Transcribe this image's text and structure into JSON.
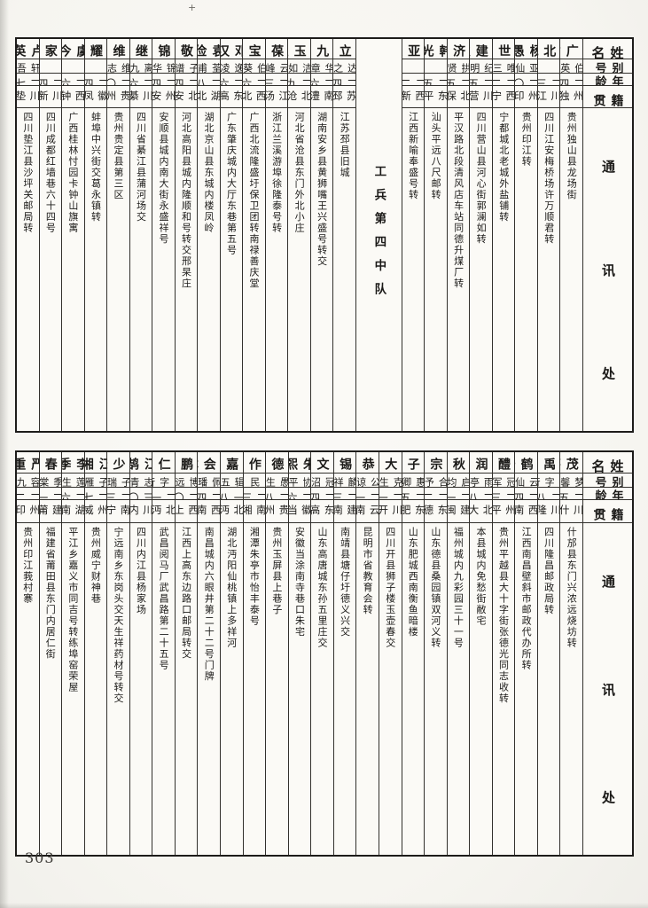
{
  "page_number": "303",
  "headers": [
    "姓名",
    "别号",
    "年龄",
    "籍贯",
    "通讯处"
  ],
  "tables": [
    {
      "columns": [
        {
          "type": "header"
        },
        {
          "type": "person",
          "name": "熊广才",
          "alias": "伯英",
          "age": "二四",
          "native": "贵州独山",
          "address": "贵州独山县龙场街"
        },
        {
          "type": "person",
          "name": "李北嵐",
          "alias": "",
          "age": "二三",
          "native": "四川江安",
          "address": "四川江安梅桥场许万顺君转"
        },
        {
          "type": "person",
          "name": "杨愚",
          "alias": "亚仙",
          "age": "二〇",
          "native": "贵州印江",
          "address": "贵州印江转"
        },
        {
          "type": "person",
          "name": "曾世平",
          "alias": "唯三",
          "age": "二二",
          "native": "江西宁都",
          "address": "宁都城北老城外盐铺转"
        },
        {
          "type": "person",
          "name": "郭建秋",
          "alias": "纪明",
          "age": "二五",
          "native": "四川营山",
          "address": "四川营山县河心街郭澜如转"
        },
        {
          "type": "person",
          "name": "窦济华",
          "alias": "拱贤",
          "age": "二五",
          "native": "河北保定",
          "address": "平汉路北段清风店车站同德升煤厂转"
        },
        {
          "type": "person",
          "name": "韩光",
          "alias": "",
          "age": "二五",
          "native": "广东平远",
          "address": "汕头平远八尺邮转"
        },
        {
          "type": "person",
          "name": "傅亚夫",
          "alias": "",
          "age": "二二",
          "native": "江西新喻",
          "address": "江西新喻奉盛号转"
        },
        {
          "type": "divider",
          "label": "工兵第四中队"
        },
        {
          "type": "person",
          "name": "杲立民",
          "alias": "达之",
          "age": "二四",
          "native": "江苏邳县",
          "address": "江苏邳县旧城"
        },
        {
          "type": "person",
          "name": "萧九成",
          "alias": "华章",
          "age": "二六",
          "native": "湖南澧县",
          "address": "湖南安乡县黄狮嘴王兴盛号转交"
        },
        {
          "type": "person",
          "name": "李玉生",
          "alias": "洁如",
          "age": "二九",
          "native": "河北沧县",
          "address": "河北省沧县东门外北小庄"
        },
        {
          "type": "person",
          "name": "张葆湘",
          "alias": "云峰",
          "age": "二三",
          "native": "浙江汤溪",
          "address": "浙江兰溪游埠徐隆泰号转"
        },
        {
          "type": "person",
          "name": "党宝忠",
          "alias": "伯葵",
          "age": "二六",
          "native": "广西北流",
          "address": "广西北流隆盛圩保卫团转南禄善庆堂"
        },
        {
          "type": "person",
          "name": "邓汉",
          "alias": "逸凌",
          "age": "二六",
          "native": "广东高要",
          "address": "广东肇庆城内大厅东巷第五号"
        },
        {
          "type": "person",
          "name": "袁俭",
          "alias": "荃甫",
          "age": "二八",
          "native": "湖北",
          "address": "湖北京山县东城内楼凤岭"
        },
        {
          "type": "person",
          "name": "杨敬贤",
          "alias": "子谱",
          "age": "二四",
          "native": "河北安新",
          "address": "河北高阳县城内隆顺和号转交邢杲庄"
        },
        {
          "type": "person",
          "name": "朱锦莘",
          "alias": "锦华",
          "age": "二四",
          "native": "贵州安顺",
          "address": "安顺县城内南大街永盛祥号"
        },
        {
          "type": "person",
          "name": "张继炎",
          "alias": "离九",
          "age": "二六",
          "native": "四川綦江",
          "address": "四川省綦江县蒲河场交"
        },
        {
          "type": "person",
          "name": "史维治",
          "alias": "维志",
          "age": "二〇",
          "native": "贵州",
          "address": "贵州贵定县第三区"
        },
        {
          "type": "person",
          "name": "陈耀武",
          "alias": "",
          "age": "二四",
          "native": "安徽凤阳",
          "address": "蚌埠中兴街交葛永镇转"
        },
        {
          "type": "person",
          "name": "虞今",
          "alias": "",
          "age": "二六",
          "native": "广西钟山",
          "address": "广西桂林忖园卡钟山旗寓"
        },
        {
          "type": "person",
          "name": "洪家模",
          "alias": "",
          "age": "二四",
          "native": "四川新繁",
          "address": "四川成都红墙巷六十四号"
        },
        {
          "type": "person",
          "name": "卢英",
          "alias": "轩吾",
          "age": "二七",
          "native": "四川垫江",
          "address": "四川垫江县沙坪关邮局转"
        }
      ]
    },
    {
      "columns": [
        {
          "type": "header"
        },
        {
          "type": "person",
          "name": "高茂莘",
          "alias": "梦馨",
          "age": "二五",
          "native": "四川什邡",
          "address": "什邡县东门兴浓远烧坊转"
        },
        {
          "type": "person",
          "name": "刘禹锟",
          "alias": "以字行",
          "age": "二八",
          "native": "四川隆昌",
          "address": "四川隆昌邮政局转"
        },
        {
          "type": "person",
          "name": "杨鹤寿",
          "alias": "云仙",
          "age": "二四",
          "native": "江西南昌",
          "address": "江西南昌壁斜市邮政代办所转"
        },
        {
          "type": "person",
          "name": "张醴泉",
          "alias": "冠军",
          "age": "二三",
          "native": "贵州平越",
          "address": "贵州平越县大十字街张德光同志收转"
        },
        {
          "type": "person",
          "name": "任润田",
          "alias": "雨亭",
          "age": "二八",
          "native": "河北大名",
          "address": "本县城内免愁街敝宅"
        },
        {
          "type": "person",
          "name": "谢秋涛",
          "alias": "启均",
          "age": "二一",
          "native": "福建闽侯",
          "address": "福州城内九彩园三十一号"
        },
        {
          "type": "person",
          "name": "刘宗舒",
          "alias": "合予",
          "age": "二二",
          "native": "山东德县",
          "address": "山东德县桑园镇双河义转"
        },
        {
          "type": "person",
          "name": "邱子煦",
          "alias": "惠卿",
          "age": "二五",
          "native": "山东肥城",
          "address": "山东肥城西南衡鱼暗楼"
        },
        {
          "type": "person",
          "name": "陈大业",
          "alias": "克生",
          "age": "二一",
          "native": "四川开县",
          "address": "四川开县狮子楼玉壶春交"
        },
        {
          "type": "person",
          "name": "蒋恭亮",
          "alias": "公谅",
          "age": "二一",
          "native": "云南",
          "address": "昆明市省教育会转"
        },
        {
          "type": "person",
          "name": "王锡祺",
          "alias": "麟祥",
          "age": "二三",
          "native": "福建南靖",
          "address": "南靖县塘仔圩德义兴交"
        },
        {
          "type": "person",
          "name": "李文沼",
          "alias": "冠沼",
          "age": "二四",
          "native": "山东高唐",
          "address": "山东高唐城东孙五里庄交"
        },
        {
          "type": "person",
          "name": "朱熙",
          "alias": "协平",
          "age": "二六",
          "native": "安徽当涂",
          "address": "安徽当涂南寺巷口朱宅"
        },
        {
          "type": "person",
          "name": "郑德诒",
          "alias": "愚生",
          "age": "二八",
          "native": "贵州",
          "address": "贵州玉屏县上巷子"
        },
        {
          "type": "person",
          "name": "黎作新",
          "alias": "民",
          "age": "二三",
          "native": "湖南湘潭",
          "address": "湘潭朱亭市怡丰泰号"
        },
        {
          "type": "person",
          "name": "董嘉瑞",
          "alias": "辑五",
          "age": "一八",
          "native": "湖北沔阳",
          "address": "湖北沔阳仙桃镇上多祥河"
        },
        {
          "type": "person",
          "name": "罗会琳",
          "alias": "佩璠",
          "age": "二四",
          "native": "江西南昌",
          "address": "南昌城内六眼井第二十二号门牌"
        },
        {
          "type": "person",
          "name": "李鹏飞",
          "alias": "博远",
          "age": "二〇",
          "native": "江西上高",
          "address": "江西上高东边路口邮局转交"
        },
        {
          "type": "person",
          "name": "郑仁卿",
          "alias": "以字行",
          "age": "二一",
          "native": "湖北沔阳",
          "address": "武昌阅马厂武昌路第二十五号"
        },
        {
          "type": "person",
          "name": "江鹄",
          "alias": "志青",
          "age": "三〇",
          "native": "四川内江",
          "address": "四川内江县杨家场"
        },
        {
          "type": "person",
          "name": "李少康",
          "alias": "子瑞",
          "age": "二三",
          "native": "湖南宁远",
          "address": "宁远南乡东岗头交天生祥药材号转交"
        },
        {
          "type": "person",
          "name": "江湘",
          "alias": "子雁",
          "age": "二七",
          "native": "贵州威宁",
          "address": "贵州威宁财神巷"
        },
        {
          "type": "person",
          "name": "李季",
          "alias": "莲生",
          "age": "二六",
          "native": "湖南",
          "address": "平江乡嘉义市同吉号转练埠窑荣屋"
        },
        {
          "type": "person",
          "name": "郑春铧",
          "alias": "季棠",
          "age": "二一",
          "native": "福建莆田",
          "address": "福建省莆田县东门内居仁街"
        },
        {
          "type": "person",
          "name": "严重",
          "alias": "容九",
          "age": "二二",
          "native": "贵州印江",
          "address": "贵州印江莪村寨"
        }
      ]
    }
  ]
}
